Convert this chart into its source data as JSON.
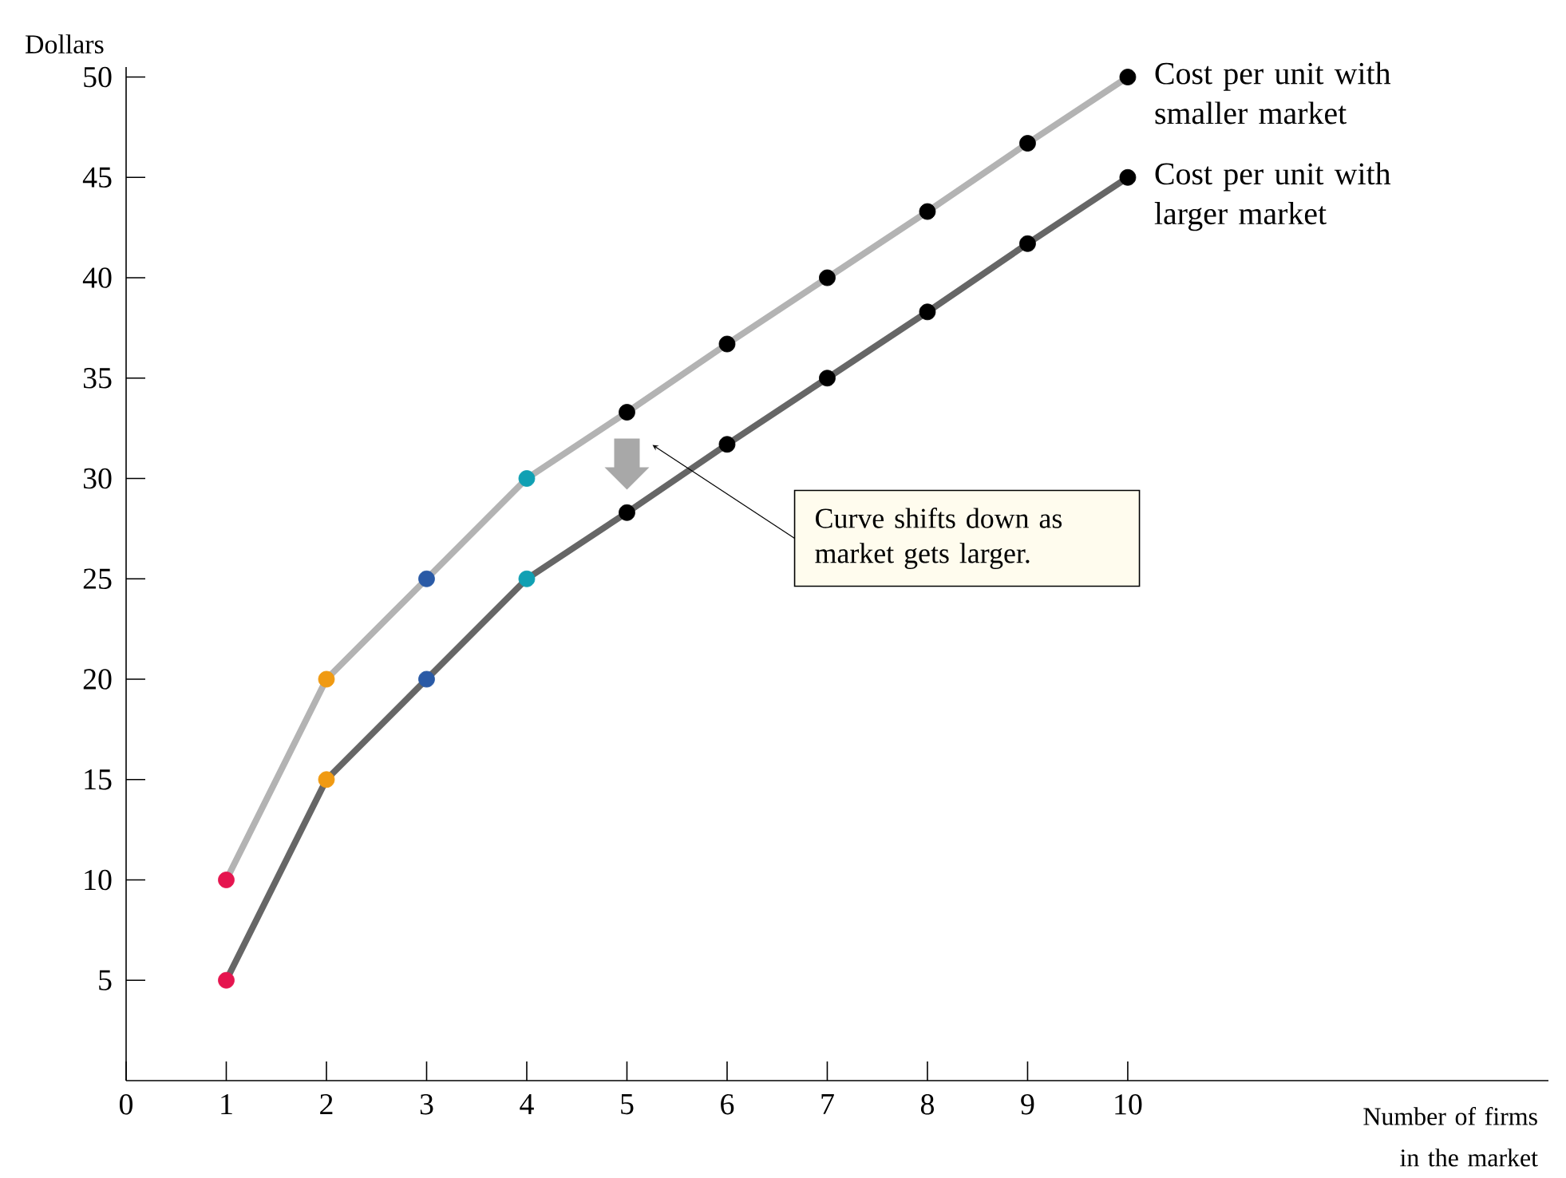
{
  "chart_data": {
    "type": "line",
    "xlabel": "Number of firms in the market",
    "ylabel": "Dollars",
    "x": [
      1,
      2,
      3,
      4,
      5,
      6,
      7,
      8,
      9,
      10
    ],
    "xlim": [
      0,
      14.2
    ],
    "ylim": [
      0,
      50.5
    ],
    "xticks": [
      0,
      1,
      2,
      3,
      4,
      5,
      6,
      7,
      8,
      9,
      10
    ],
    "yticks": [
      5,
      10,
      15,
      20,
      25,
      30,
      35,
      40,
      45,
      50
    ],
    "series": [
      {
        "name": "Cost per unit with smaller market",
        "color": "#b3b3b3",
        "colors": [
          "#e5154f",
          "#f09a12",
          "#2a5aa6",
          "#10a0b3",
          "#000000",
          "#000000",
          "#000000",
          "#000000",
          "#000000",
          "#000000"
        ],
        "values": [
          10,
          20,
          25,
          30,
          33.3,
          36.7,
          40,
          43.3,
          46.7,
          50
        ]
      },
      {
        "name": "Cost per unit with larger market",
        "color": "#666666",
        "colors": [
          "#e5154f",
          "#f09a12",
          "#2a5aa6",
          "#10a0b3",
          "#000000",
          "#000000",
          "#000000",
          "#000000",
          "#000000",
          "#000000"
        ],
        "values": [
          5,
          15,
          20,
          25,
          28.3,
          31.7,
          35,
          38.3,
          41.7,
          45
        ]
      }
    ],
    "annotations": [
      "Curve shifts down as market gets larger."
    ],
    "marker": "circle",
    "line_style": "solid",
    "grid": false
  }
}
